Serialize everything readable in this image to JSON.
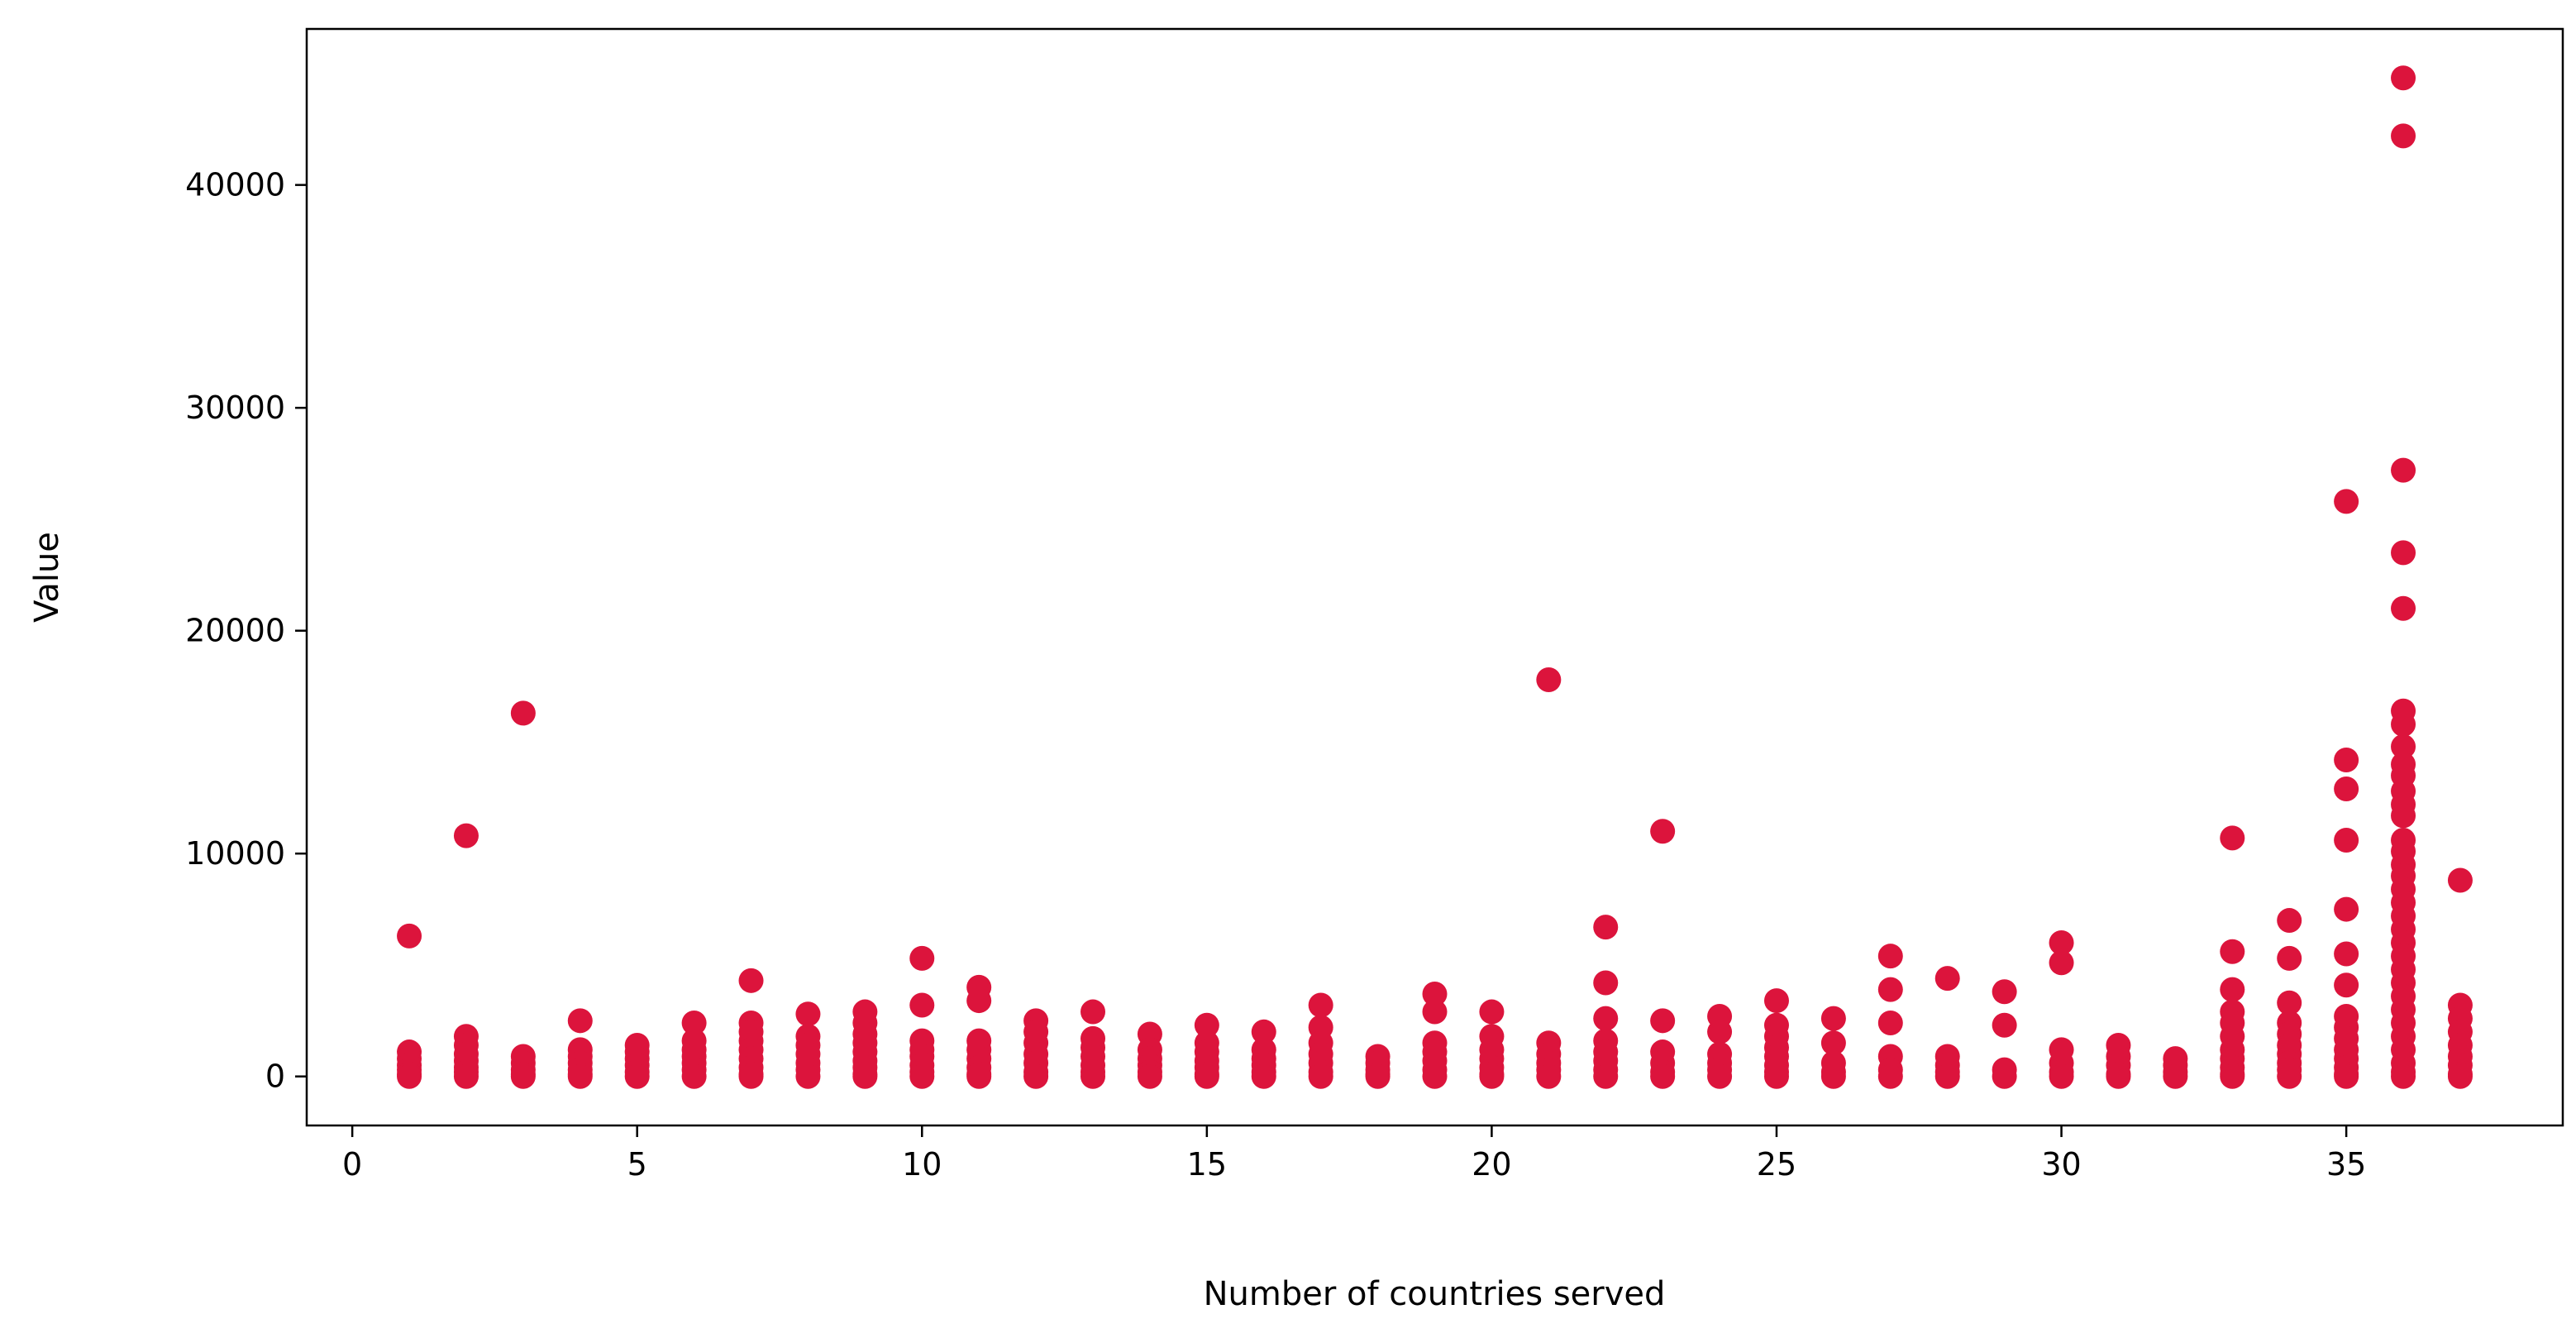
{
  "chart_data": {
    "type": "scatter",
    "title": "",
    "xlabel": "Number of countries served",
    "ylabel": "Value",
    "xlim": [
      -0.8,
      38.8
    ],
    "ylim": [
      -2200,
      47000
    ],
    "xticks": [
      0,
      5,
      10,
      15,
      20,
      25,
      30,
      35
    ],
    "yticks": [
      0,
      10000,
      20000,
      30000,
      40000
    ],
    "grid": false,
    "legend": "none",
    "marker_color": "#dc143c",
    "series": [
      {
        "points": [
          [
            1,
            6300
          ],
          [
            1,
            1100
          ],
          [
            1,
            800
          ],
          [
            1,
            500
          ],
          [
            1,
            300
          ],
          [
            1,
            100
          ],
          [
            1,
            0
          ],
          [
            2,
            10800
          ],
          [
            2,
            1800
          ],
          [
            2,
            1400
          ],
          [
            2,
            1000
          ],
          [
            2,
            700
          ],
          [
            2,
            400
          ],
          [
            2,
            200
          ],
          [
            2,
            0
          ],
          [
            3,
            16300
          ],
          [
            3,
            900
          ],
          [
            3,
            600
          ],
          [
            3,
            300
          ],
          [
            3,
            100
          ],
          [
            3,
            0
          ],
          [
            4,
            2500
          ],
          [
            4,
            1200
          ],
          [
            4,
            900
          ],
          [
            4,
            600
          ],
          [
            4,
            300
          ],
          [
            4,
            100
          ],
          [
            4,
            0
          ],
          [
            5,
            1400
          ],
          [
            5,
            1100
          ],
          [
            5,
            800
          ],
          [
            5,
            500
          ],
          [
            5,
            200
          ],
          [
            5,
            0
          ],
          [
            6,
            2400
          ],
          [
            6,
            1600
          ],
          [
            6,
            1200
          ],
          [
            6,
            900
          ],
          [
            6,
            600
          ],
          [
            6,
            300
          ],
          [
            6,
            0
          ],
          [
            7,
            4300
          ],
          [
            7,
            2400
          ],
          [
            7,
            2000
          ],
          [
            7,
            1600
          ],
          [
            7,
            1200
          ],
          [
            7,
            800
          ],
          [
            7,
            400
          ],
          [
            7,
            100
          ],
          [
            7,
            0
          ],
          [
            8,
            2800
          ],
          [
            8,
            1800
          ],
          [
            8,
            1400
          ],
          [
            8,
            1000
          ],
          [
            8,
            600
          ],
          [
            8,
            300
          ],
          [
            8,
            0
          ],
          [
            9,
            2900
          ],
          [
            9,
            2400
          ],
          [
            9,
            1900
          ],
          [
            9,
            1500
          ],
          [
            9,
            1100
          ],
          [
            9,
            700
          ],
          [
            9,
            400
          ],
          [
            9,
            100
          ],
          [
            9,
            0
          ],
          [
            10,
            5300
          ],
          [
            10,
            3200
          ],
          [
            10,
            1600
          ],
          [
            10,
            1200
          ],
          [
            10,
            900
          ],
          [
            10,
            500
          ],
          [
            10,
            200
          ],
          [
            10,
            0
          ],
          [
            11,
            4000
          ],
          [
            11,
            3400
          ],
          [
            11,
            1600
          ],
          [
            11,
            1200
          ],
          [
            11,
            800
          ],
          [
            11,
            400
          ],
          [
            11,
            100
          ],
          [
            11,
            0
          ],
          [
            12,
            2500
          ],
          [
            12,
            2000
          ],
          [
            12,
            1500
          ],
          [
            12,
            1000
          ],
          [
            12,
            600
          ],
          [
            12,
            200
          ],
          [
            12,
            0
          ],
          [
            13,
            2900
          ],
          [
            13,
            1700
          ],
          [
            13,
            1300
          ],
          [
            13,
            900
          ],
          [
            13,
            500
          ],
          [
            13,
            200
          ],
          [
            13,
            0
          ],
          [
            14,
            1900
          ],
          [
            14,
            1200
          ],
          [
            14,
            800
          ],
          [
            14,
            500
          ],
          [
            14,
            200
          ],
          [
            14,
            0
          ],
          [
            15,
            2300
          ],
          [
            15,
            1500
          ],
          [
            15,
            1100
          ],
          [
            15,
            700
          ],
          [
            15,
            400
          ],
          [
            15,
            100
          ],
          [
            15,
            0
          ],
          [
            16,
            2000
          ],
          [
            16,
            1200
          ],
          [
            16,
            800
          ],
          [
            16,
            500
          ],
          [
            16,
            200
          ],
          [
            16,
            0
          ],
          [
            17,
            3200
          ],
          [
            17,
            2200
          ],
          [
            17,
            1500
          ],
          [
            17,
            1000
          ],
          [
            17,
            600
          ],
          [
            17,
            200
          ],
          [
            17,
            0
          ],
          [
            18,
            900
          ],
          [
            18,
            600
          ],
          [
            18,
            300
          ],
          [
            18,
            100
          ],
          [
            18,
            0
          ],
          [
            19,
            3700
          ],
          [
            19,
            2900
          ],
          [
            19,
            1500
          ],
          [
            19,
            1100
          ],
          [
            19,
            700
          ],
          [
            19,
            300
          ],
          [
            19,
            0
          ],
          [
            20,
            2900
          ],
          [
            20,
            1800
          ],
          [
            20,
            1200
          ],
          [
            20,
            800
          ],
          [
            20,
            400
          ],
          [
            20,
            100
          ],
          [
            20,
            0
          ],
          [
            21,
            17800
          ],
          [
            21,
            1500
          ],
          [
            21,
            1000
          ],
          [
            21,
            600
          ],
          [
            21,
            300
          ],
          [
            21,
            0
          ],
          [
            22,
            6700
          ],
          [
            22,
            4200
          ],
          [
            22,
            2600
          ],
          [
            22,
            1600
          ],
          [
            22,
            1100
          ],
          [
            22,
            700
          ],
          [
            22,
            300
          ],
          [
            22,
            0
          ],
          [
            23,
            11000
          ],
          [
            23,
            2500
          ],
          [
            23,
            1100
          ],
          [
            23,
            600
          ],
          [
            23,
            200
          ],
          [
            23,
            0
          ],
          [
            24,
            2700
          ],
          [
            24,
            2000
          ],
          [
            24,
            1000
          ],
          [
            24,
            600
          ],
          [
            24,
            300
          ],
          [
            24,
            0
          ],
          [
            25,
            3400
          ],
          [
            25,
            2300
          ],
          [
            25,
            1800
          ],
          [
            25,
            1300
          ],
          [
            25,
            900
          ],
          [
            25,
            500
          ],
          [
            25,
            200
          ],
          [
            25,
            0
          ],
          [
            26,
            2600
          ],
          [
            26,
            1500
          ],
          [
            26,
            600
          ],
          [
            26,
            200
          ],
          [
            26,
            0
          ],
          [
            27,
            5400
          ],
          [
            27,
            3900
          ],
          [
            27,
            2400
          ],
          [
            27,
            900
          ],
          [
            27,
            300
          ],
          [
            27,
            0
          ],
          [
            28,
            4400
          ],
          [
            28,
            900
          ],
          [
            28,
            500
          ],
          [
            28,
            200
          ],
          [
            28,
            0
          ],
          [
            29,
            3800
          ],
          [
            29,
            2300
          ],
          [
            29,
            300
          ],
          [
            29,
            0
          ],
          [
            30,
            6000
          ],
          [
            30,
            5100
          ],
          [
            30,
            1200
          ],
          [
            30,
            600
          ],
          [
            30,
            200
          ],
          [
            30,
            0
          ],
          [
            31,
            1400
          ],
          [
            31,
            900
          ],
          [
            31,
            500
          ],
          [
            31,
            100
          ],
          [
            31,
            0
          ],
          [
            32,
            800
          ],
          [
            32,
            500
          ],
          [
            32,
            200
          ],
          [
            32,
            0
          ],
          [
            33,
            10700
          ],
          [
            33,
            5600
          ],
          [
            33,
            3900
          ],
          [
            33,
            2900
          ],
          [
            33,
            2400
          ],
          [
            33,
            1800
          ],
          [
            33,
            1200
          ],
          [
            33,
            800
          ],
          [
            33,
            400
          ],
          [
            33,
            100
          ],
          [
            33,
            0
          ],
          [
            34,
            7000
          ],
          [
            34,
            5300
          ],
          [
            34,
            3300
          ],
          [
            34,
            2400
          ],
          [
            34,
            1900
          ],
          [
            34,
            1400
          ],
          [
            34,
            1000
          ],
          [
            34,
            600
          ],
          [
            34,
            300
          ],
          [
            34,
            0
          ],
          [
            35,
            25800
          ],
          [
            35,
            14200
          ],
          [
            35,
            12900
          ],
          [
            35,
            10600
          ],
          [
            35,
            7500
          ],
          [
            35,
            5500
          ],
          [
            35,
            4100
          ],
          [
            35,
            2700
          ],
          [
            35,
            2200
          ],
          [
            35,
            1700
          ],
          [
            35,
            1200
          ],
          [
            35,
            800
          ],
          [
            35,
            400
          ],
          [
            35,
            100
          ],
          [
            35,
            0
          ],
          [
            36,
            44800
          ],
          [
            36,
            42200
          ],
          [
            36,
            27200
          ],
          [
            36,
            23500
          ],
          [
            36,
            21000
          ],
          [
            36,
            16400
          ],
          [
            36,
            15800
          ],
          [
            36,
            14800
          ],
          [
            36,
            14000
          ],
          [
            36,
            13500
          ],
          [
            36,
            12800
          ],
          [
            36,
            12200
          ],
          [
            36,
            11700
          ],
          [
            36,
            10600
          ],
          [
            36,
            10100
          ],
          [
            36,
            9500
          ],
          [
            36,
            9000
          ],
          [
            36,
            8400
          ],
          [
            36,
            7800
          ],
          [
            36,
            7200
          ],
          [
            36,
            6600
          ],
          [
            36,
            6000
          ],
          [
            36,
            5400
          ],
          [
            36,
            4800
          ],
          [
            36,
            4200
          ],
          [
            36,
            3600
          ],
          [
            36,
            3000
          ],
          [
            36,
            2400
          ],
          [
            36,
            1800
          ],
          [
            36,
            1200
          ],
          [
            36,
            600
          ],
          [
            36,
            200
          ],
          [
            36,
            0
          ],
          [
            37,
            8800
          ],
          [
            37,
            3200
          ],
          [
            37,
            2600
          ],
          [
            37,
            2000
          ],
          [
            37,
            1400
          ],
          [
            37,
            900
          ],
          [
            37,
            500
          ],
          [
            37,
            100
          ],
          [
            37,
            0
          ]
        ]
      }
    ]
  }
}
